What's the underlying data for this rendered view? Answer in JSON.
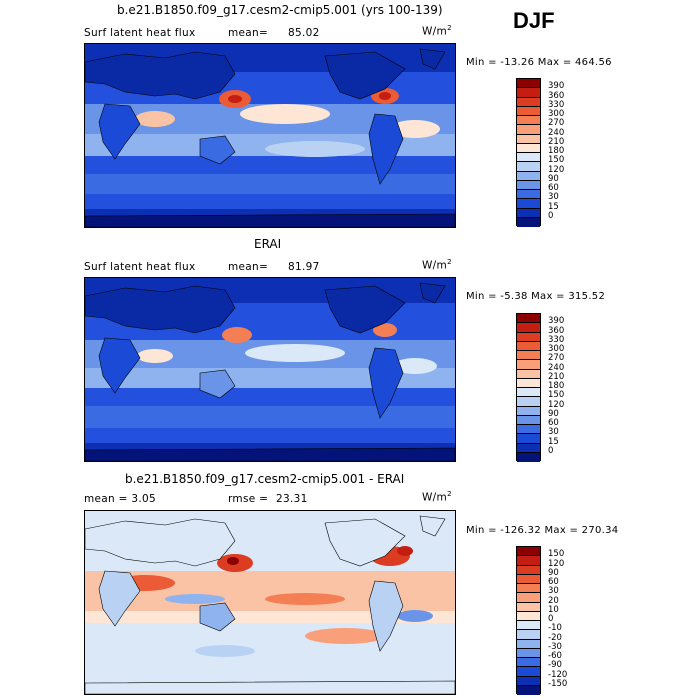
{
  "season": "DJF",
  "panels": [
    {
      "title": "b.e21.B1850.f09_g17.cesm2-cmip5.001 (yrs 100-139)",
      "left_label": "Surf latent heat flux",
      "stat_label": "mean=",
      "stat_value": "85.02",
      "units": "W/m",
      "units_exp": "2",
      "minmax": "Min = -13.26 Max = 464.56",
      "colorbar_labels": [
        "390",
        "360",
        "330",
        "300",
        "270",
        "240",
        "210",
        "180",
        "150",
        "120",
        "90",
        "60",
        "30",
        "15",
        "0"
      ]
    },
    {
      "title": "ERAI",
      "left_label": "Surf latent heat flux",
      "stat_label": "mean=",
      "stat_value": "81.97",
      "units": "W/m",
      "units_exp": "2",
      "minmax": "Min = -5.38 Max = 315.52",
      "colorbar_labels": [
        "390",
        "360",
        "330",
        "300",
        "270",
        "240",
        "210",
        "180",
        "150",
        "120",
        "90",
        "60",
        "30",
        "15",
        "0"
      ]
    },
    {
      "title": "b.e21.B1850.f09_g17.cesm2-cmip5.001 - ERAI",
      "left_label": "mean = 3.05",
      "stat_label": "rmse =",
      "stat_value": "23.31",
      "units": "W/m",
      "units_exp": "2",
      "minmax": "Min = -126.32 Max = 270.34",
      "colorbar_labels": [
        "150",
        "120",
        "90",
        "60",
        "30",
        "20",
        "10",
        "0",
        "-10",
        "-20",
        "-30",
        "-60",
        "-90",
        "-120",
        "-150"
      ]
    }
  ],
  "colors": {
    "abs_scale": [
      "#8b0000",
      "#c41e12",
      "#dc3d22",
      "#eb5b36",
      "#f47f55",
      "#f9a07a",
      "#fbc3a5",
      "#fde6d6",
      "#dbe8f8",
      "#b9d2f4",
      "#8fb3ee",
      "#6a94e8",
      "#3b6be3",
      "#1b4bd6",
      "#0d2fb3",
      "#03137a"
    ],
    "diff_scale": [
      "#8b0000",
      "#c41e12",
      "#dc3d22",
      "#eb5b36",
      "#f47f55",
      "#f9a07a",
      "#fbc3a5",
      "#fde6d6",
      "#dbe8f8",
      "#b9d2f4",
      "#8fb3ee",
      "#6a94e8",
      "#3b6be3",
      "#1b4bd6",
      "#0d2fb3",
      "#03137a"
    ]
  }
}
